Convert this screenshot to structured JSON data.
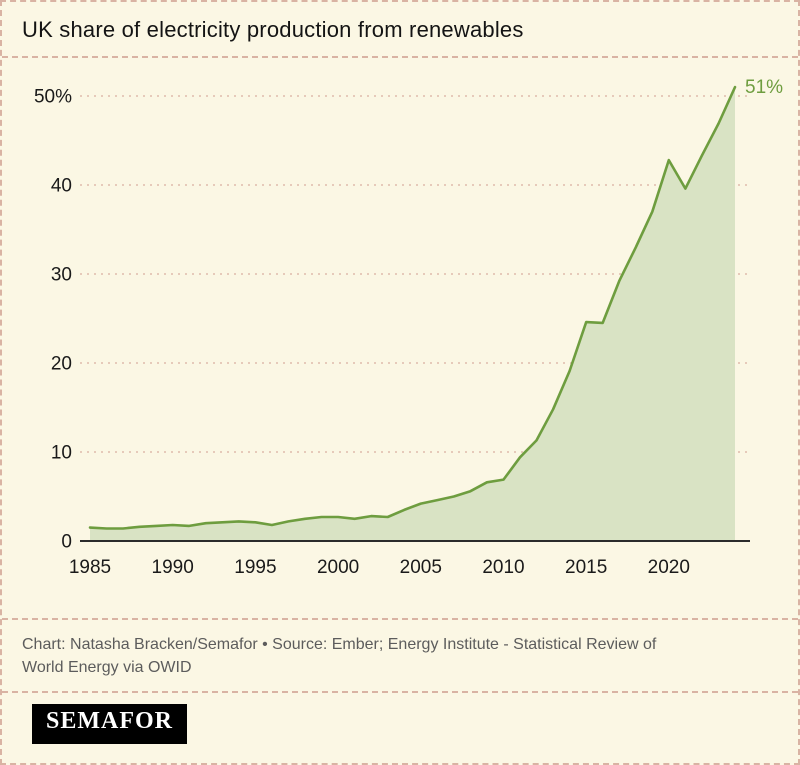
{
  "title": "UK share of electricity production from renewables",
  "chart_data": {
    "type": "area",
    "title": "UK share of electricity production from renewables",
    "x": [
      1985,
      1986,
      1987,
      1988,
      1989,
      1990,
      1991,
      1992,
      1993,
      1994,
      1995,
      1996,
      1997,
      1998,
      1999,
      2000,
      2001,
      2002,
      2003,
      2004,
      2005,
      2006,
      2007,
      2008,
      2009,
      2010,
      2011,
      2012,
      2013,
      2014,
      2015,
      2016,
      2017,
      2018,
      2019,
      2020,
      2021,
      2022,
      2023,
      2024
    ],
    "values": [
      1.5,
      1.4,
      1.4,
      1.6,
      1.7,
      1.8,
      1.7,
      2.0,
      2.1,
      2.2,
      2.1,
      1.8,
      2.2,
      2.5,
      2.7,
      2.7,
      2.5,
      2.8,
      2.7,
      3.5,
      4.2,
      4.6,
      5.0,
      5.6,
      6.6,
      6.9,
      9.4,
      11.3,
      14.8,
      19.1,
      24.6,
      24.5,
      29.2,
      33.0,
      37.0,
      42.8,
      39.6,
      43.3,
      46.9,
      51.0
    ],
    "xlabel": "",
    "ylabel": "",
    "ylim": [
      0,
      51
    ],
    "yticks": [
      0,
      10,
      20,
      30,
      40,
      50
    ],
    "ytick_labels": [
      "0",
      "10",
      "20",
      "30",
      "40",
      "50%"
    ],
    "xticks": [
      1985,
      1990,
      1995,
      2000,
      2005,
      2010,
      2015,
      2020
    ],
    "end_label": "51%",
    "grid": "dashed horizontal",
    "legend": "none",
    "line_color": "#6e9d3f",
    "fill_color": "#d9e3c4",
    "grid_color": "#e0bcab",
    "axis_color": "#2b2b2b",
    "tick_color": "#1a1a1a"
  },
  "footer": {
    "credit_line1": "Chart: Natasha Bracken/Semafor • Source: Ember; Energy Institute - Statistical Review of",
    "credit_line2": "World Energy via OWID",
    "logo": "SEMAFOR"
  }
}
